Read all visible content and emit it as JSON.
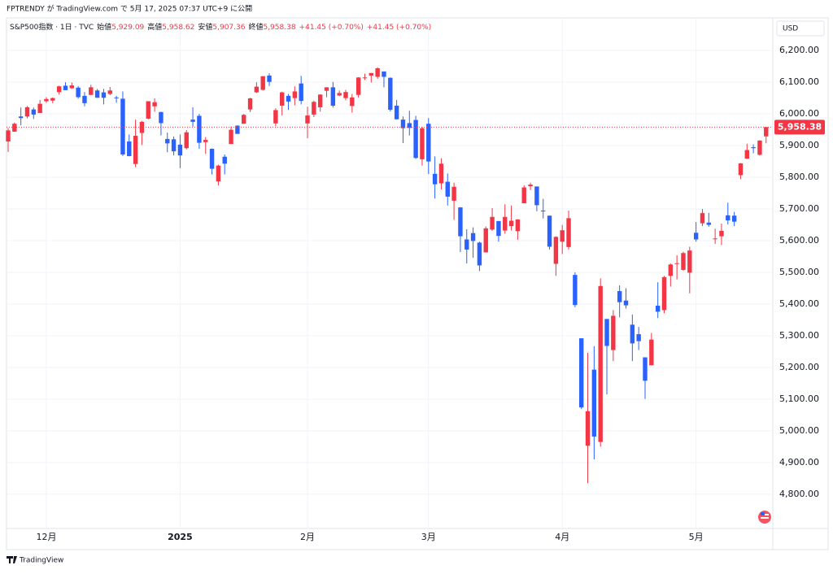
{
  "header": {
    "publish": "FPTRENDY が TradingView.com で 5月 17, 2025 07:37 UTC+9 に公開",
    "symbol": "S&P500指数 · 1日 · TVC",
    "open_label": "始値",
    "open": "5,929.09",
    "high_label": "高値",
    "high": "5,958.62",
    "low_label": "安値",
    "low": "5,907.36",
    "close_label": "終値",
    "close": "5,958.38",
    "change": "+41.45 (+0.70%)",
    "change2": "+41.45 (+0.70%)",
    "currency": "USD",
    "brand": "TradingView"
  },
  "chart_data": {
    "type": "candlestick",
    "up_color": "#f23645",
    "down_color": "#2962ff",
    "grid": true,
    "last_price_label": "5,958.38",
    "categories": [
      null,
      null,
      null,
      null,
      null,
      null,
      "12月",
      null,
      null,
      null,
      null,
      null,
      null,
      null,
      null,
      null,
      null,
      null,
      null,
      null,
      null,
      null,
      null,
      null,
      null,
      null,
      null,
      "2025",
      null,
      null,
      null,
      null,
      null,
      null,
      null,
      null,
      null,
      null,
      null,
      null,
      null,
      null,
      null,
      null,
      null,
      null,
      null,
      "2月",
      null,
      null,
      null,
      null,
      null,
      null,
      null,
      null,
      null,
      null,
      null,
      null,
      null,
      null,
      null,
      null,
      null,
      null,
      "3月",
      null,
      null,
      null,
      null,
      null,
      null,
      null,
      null,
      null,
      null,
      null,
      null,
      null,
      null,
      null,
      null,
      null,
      null,
      null,
      null,
      "4月",
      null,
      null,
      null,
      null,
      null,
      null,
      null,
      null,
      null,
      null,
      null,
      null,
      null,
      null,
      null,
      null,
      null,
      null,
      null,
      null,
      "5月",
      null,
      null,
      null,
      null,
      null,
      null,
      null,
      null,
      null,
      null,
      null
    ],
    "open": [
      5913,
      5944,
      5992,
      5992,
      6014,
      6003,
      6040,
      6042,
      6069,
      6089,
      6081,
      6083,
      6057,
      6060,
      6074,
      6068,
      6063,
      6052,
      6048,
      5913,
      5842,
      5940,
      5985,
      6024,
      6006,
      5921,
      5920,
      5903,
      5892,
      5982,
      5994,
      5911,
      5890,
      5787,
      5865,
      5905,
      5963,
      5969,
      6014,
      6068,
      6076,
      6121,
      5970,
      6026,
      6057,
      6050,
      6096,
      5970,
      5998,
      6021,
      6073,
      6084,
      6058,
      6050,
      6025,
      6060,
      6115,
      6121,
      6117,
      6134,
      6114,
      6026,
      5982,
      5971,
      5981,
      5857,
      5969,
      5811,
      5781,
      5786,
      5726,
      5705,
      5604,
      5624,
      5594,
      5563,
      5635,
      5662,
      5632,
      5646,
      5630,
      5718,
      5772,
      5771,
      5695,
      5679,
      5527,
      5597,
      5580,
      5492,
      5292,
      4953,
      5193,
      4965,
      5353,
      5255,
      5441,
      5411,
      5335,
      5305,
      5232,
      5207,
      5395,
      5381,
      5489,
      5529,
      5508,
      5499,
      5625,
      5655,
      5657,
      5606,
      5614,
      5680,
      5679,
      5807,
      5859,
      5895,
      5871,
      5929.09
    ],
    "high": [
      5955,
      5973,
      6020,
      6025,
      6020,
      6044,
      6053,
      6052,
      6089,
      6100,
      6099,
      6088,
      6069,
      6092,
      6079,
      6079,
      6085,
      6057,
      6071,
      5935,
      5982,
      5978,
      6040,
      6049,
      6007,
      5941,
      5929,
      5935,
      5949,
      6021,
      6000,
      5927,
      5891,
      5840,
      5872,
      5960,
      5964,
      6000,
      6051,
      6100,
      6119,
      6128,
      6018,
      6070,
      6063,
      6087,
      6120,
      6023,
      6042,
      6062,
      6084,
      6101,
      6074,
      6076,
      6063,
      6116,
      6127,
      6129,
      6147,
      6134,
      6115,
      6044,
      5992,
      6010,
      5994,
      5959,
      5987,
      5866,
      5860,
      5812,
      5783,
      5706,
      5636,
      5642,
      5597,
      5645,
      5703,
      5662,
      5715,
      5711,
      5668,
      5775,
      5783,
      5771,
      5732,
      5679,
      5614,
      5650,
      5695,
      5500,
      5292,
      5246,
      5267,
      5481,
      5353,
      5381,
      5459,
      5450,
      5367,
      5328,
      5232,
      5309,
      5469,
      5489,
      5528,
      5554,
      5565,
      5581,
      5659,
      5700,
      5688,
      5638,
      5654,
      5720,
      5691,
      5845,
      5906,
      5904,
      5917,
      5958.62
    ],
    "low": [
      5880,
      5944,
      5964,
      5986,
      5984,
      6003,
      6035,
      6034,
      6061,
      6075,
      6079,
      6048,
      6024,
      6060,
      6051,
      6030,
      6059,
      6035,
      5867,
      5866,
      5832,
      5902,
      5983,
      6007,
      5932,
      5879,
      5869,
      5829,
      5888,
      5960,
      5890,
      5874,
      5809,
      5774,
      5809,
      5905,
      5938,
      5969,
      6006,
      6066,
      6074,
      6088,
      5962,
      5995,
      6013,
      6027,
      6030,
      5923,
      5990,
      6007,
      6053,
      6020,
      6056,
      6043,
      6004,
      6051,
      6107,
      6099,
      6111,
      6084,
      6008,
      5983,
      5908,
      5932,
      5858,
      5837,
      5810,
      5733,
      5762,
      5711,
      5666,
      5564,
      5528,
      5546,
      5504,
      5563,
      5631,
      5597,
      5622,
      5632,
      5603,
      5718,
      5760,
      5693,
      5670,
      5572,
      5489,
      5558,
      5572,
      5390,
      5069,
      4835,
      4910,
      4950,
      5115,
      5220,
      5358,
      5386,
      5220,
      5255,
      5101,
      5207,
      5356,
      5371,
      5455,
      5478,
      5505,
      5434,
      5597,
      5646,
      5644,
      5590,
      5586,
      5651,
      5646,
      5794,
      5858,
      5876,
      5869,
      5907.36
    ],
    "close": [
      5948,
      5969,
      5987,
      6021,
      5998,
      6032,
      6047,
      6050,
      6087,
      6075,
      6090,
      6053,
      6034,
      6084,
      6051,
      6051,
      6074,
      6051,
      5872,
      5867,
      5931,
      5975,
      6040,
      6037,
      5971,
      5907,
      5882,
      5869,
      5942,
      5975,
      5909,
      5918,
      5827,
      5837,
      5843,
      5950,
      5937,
      5997,
      6049,
      6086,
      6119,
      6101,
      6012,
      6068,
      6039,
      6071,
      6041,
      5995,
      6038,
      6061,
      6084,
      6026,
      6066,
      6069,
      6052,
      6115,
      6115,
      6129,
      6144,
      6117,
      6013,
      5983,
      5955,
      5956,
      5861,
      5955,
      5850,
      5778,
      5843,
      5739,
      5770,
      5614,
      5572,
      5599,
      5522,
      5639,
      5675,
      5615,
      5675,
      5663,
      5667,
      5768,
      5777,
      5712,
      5693,
      5581,
      5612,
      5633,
      5671,
      5397,
      5074,
      5062,
      4982,
      5457,
      5268,
      5363,
      5406,
      5396,
      5276,
      5283,
      5158,
      5288,
      5376,
      5485,
      5525,
      5529,
      5561,
      5569,
      5604,
      5687,
      5650,
      5607,
      5631,
      5664,
      5660,
      5844,
      5886,
      5892,
      5916,
      5958.38
    ],
    "ylim": [
      4692,
      6303
    ],
    "yticks": [
      {
        "value": 4800,
        "label": "4,800.00"
      },
      {
        "value": 4900,
        "label": "4,900.00"
      },
      {
        "value": 5000,
        "label": "5,000.00"
      },
      {
        "value": 5100,
        "label": "5,100.00"
      },
      {
        "value": 5200,
        "label": "5,200.00"
      },
      {
        "value": 5300,
        "label": "5,300.00"
      },
      {
        "value": 5400,
        "label": "5,400.00"
      },
      {
        "value": 5500,
        "label": "5,500.00"
      },
      {
        "value": 5600,
        "label": "5,600.00"
      },
      {
        "value": 5700,
        "label": "5,700.00"
      },
      {
        "value": 5800,
        "label": "5,800.00"
      },
      {
        "value": 5900,
        "label": "5,900.00"
      },
      {
        "value": 6000,
        "label": "6,000.00"
      },
      {
        "value": 6100,
        "label": "6,100.00"
      },
      {
        "value": 6200,
        "label": "6,200.00"
      }
    ]
  }
}
